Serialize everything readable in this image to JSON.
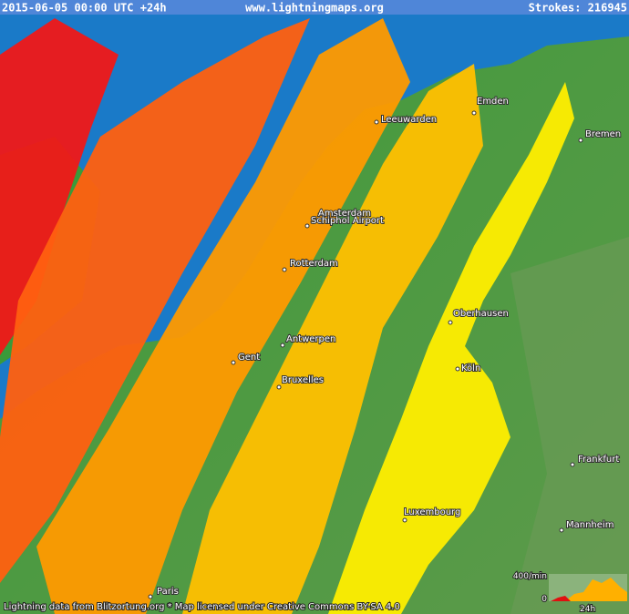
{
  "header": {
    "timestamp": "2015-06-05 00:00 UTC +24h",
    "site": "www.lightningmaps.org",
    "strokes": "Strokes: 216945"
  },
  "cities": [
    "Emden",
    "Bremen",
    "Leeuwarden",
    "Amsterdam",
    "Schiphol Airport",
    "Rotterdam",
    "Oberhausen",
    "Antwerpen",
    "Gent",
    "Bruxelles",
    "Köln",
    "Frankfurt",
    "Luxembourg",
    "Mannheim",
    "Paris"
  ],
  "legend": {
    "rate": "400/min",
    "zero": "0",
    "span": "24h"
  },
  "footer": {
    "credit": "Lightning data from Blitzortung.org  *  Map licensed under Creative Commons BY-SA 4.0"
  }
}
